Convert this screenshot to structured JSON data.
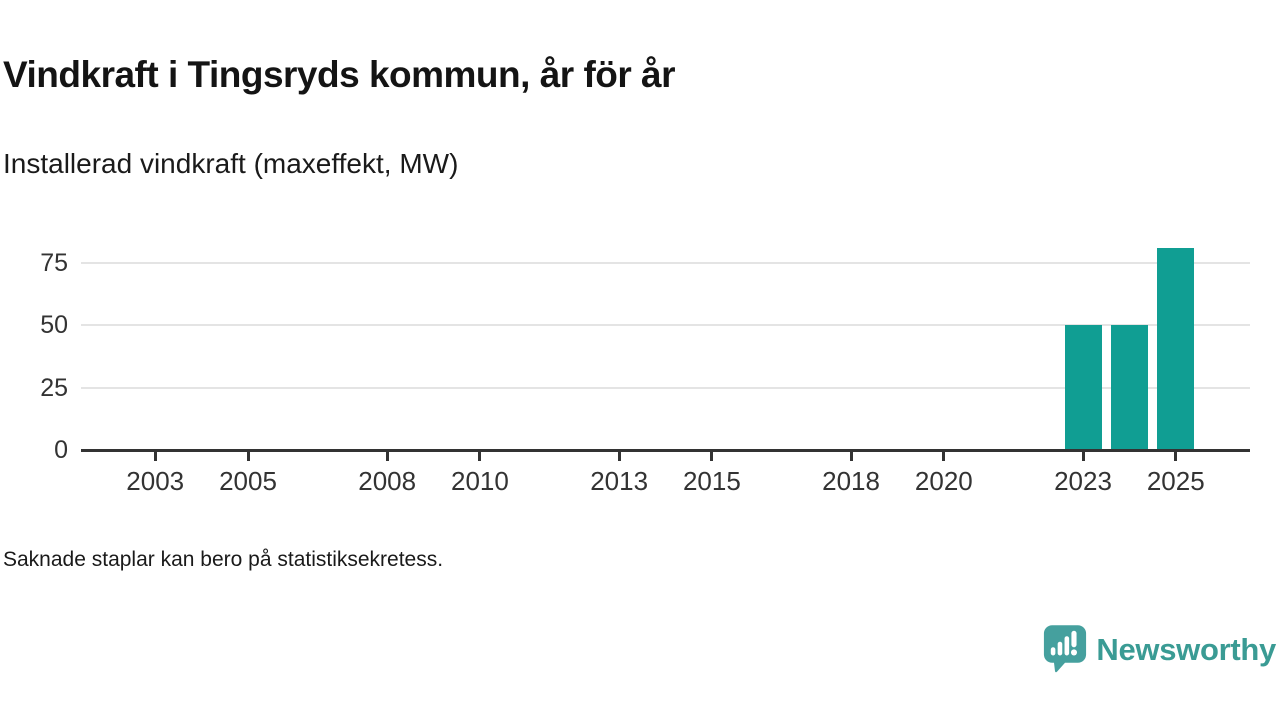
{
  "header": {
    "title": "Vindkraft i Tingsryds kommun, år för år",
    "subtitle": "Installerad vindkraft (maxeffekt, MW)"
  },
  "footnote": "Saknade staplar kan bero på statistiksekretess.",
  "branding": {
    "name": "Newsworthy",
    "icon": "newsworthy-speech-bubble-bar-chart-icon",
    "icon_color": "#45a09e",
    "text_color": "#3a9b94"
  },
  "chart_data": {
    "type": "bar",
    "title": "Vindkraft i Tingsryds kommun, år för år",
    "subtitle": "Installerad vindkraft (maxeffekt, MW)",
    "xlabel": "",
    "ylabel": "Installerad vindkraft (maxeffekt, MW)",
    "x_domain": [
      2001.4,
      2026.6
    ],
    "x_ticks": [
      2003,
      2005,
      2008,
      2010,
      2013,
      2015,
      2018,
      2020,
      2023,
      2025
    ],
    "y_ticks": [
      0,
      25,
      50,
      75
    ],
    "ylim": [
      0,
      84
    ],
    "grid": true,
    "legend_position": "none",
    "bar_color": "#109e93",
    "axis_color": "#333333",
    "grid_color": "#e4e4e4",
    "series": [
      {
        "name": "Installerad vindkraft (maxeffekt, MW)",
        "points": [
          {
            "x": 2023,
            "y": 50
          },
          {
            "x": 2024,
            "y": 50
          },
          {
            "x": 2025,
            "y": 81
          }
        ]
      }
    ],
    "note": "Saknade staplar kan bero på statistiksekretess."
  }
}
